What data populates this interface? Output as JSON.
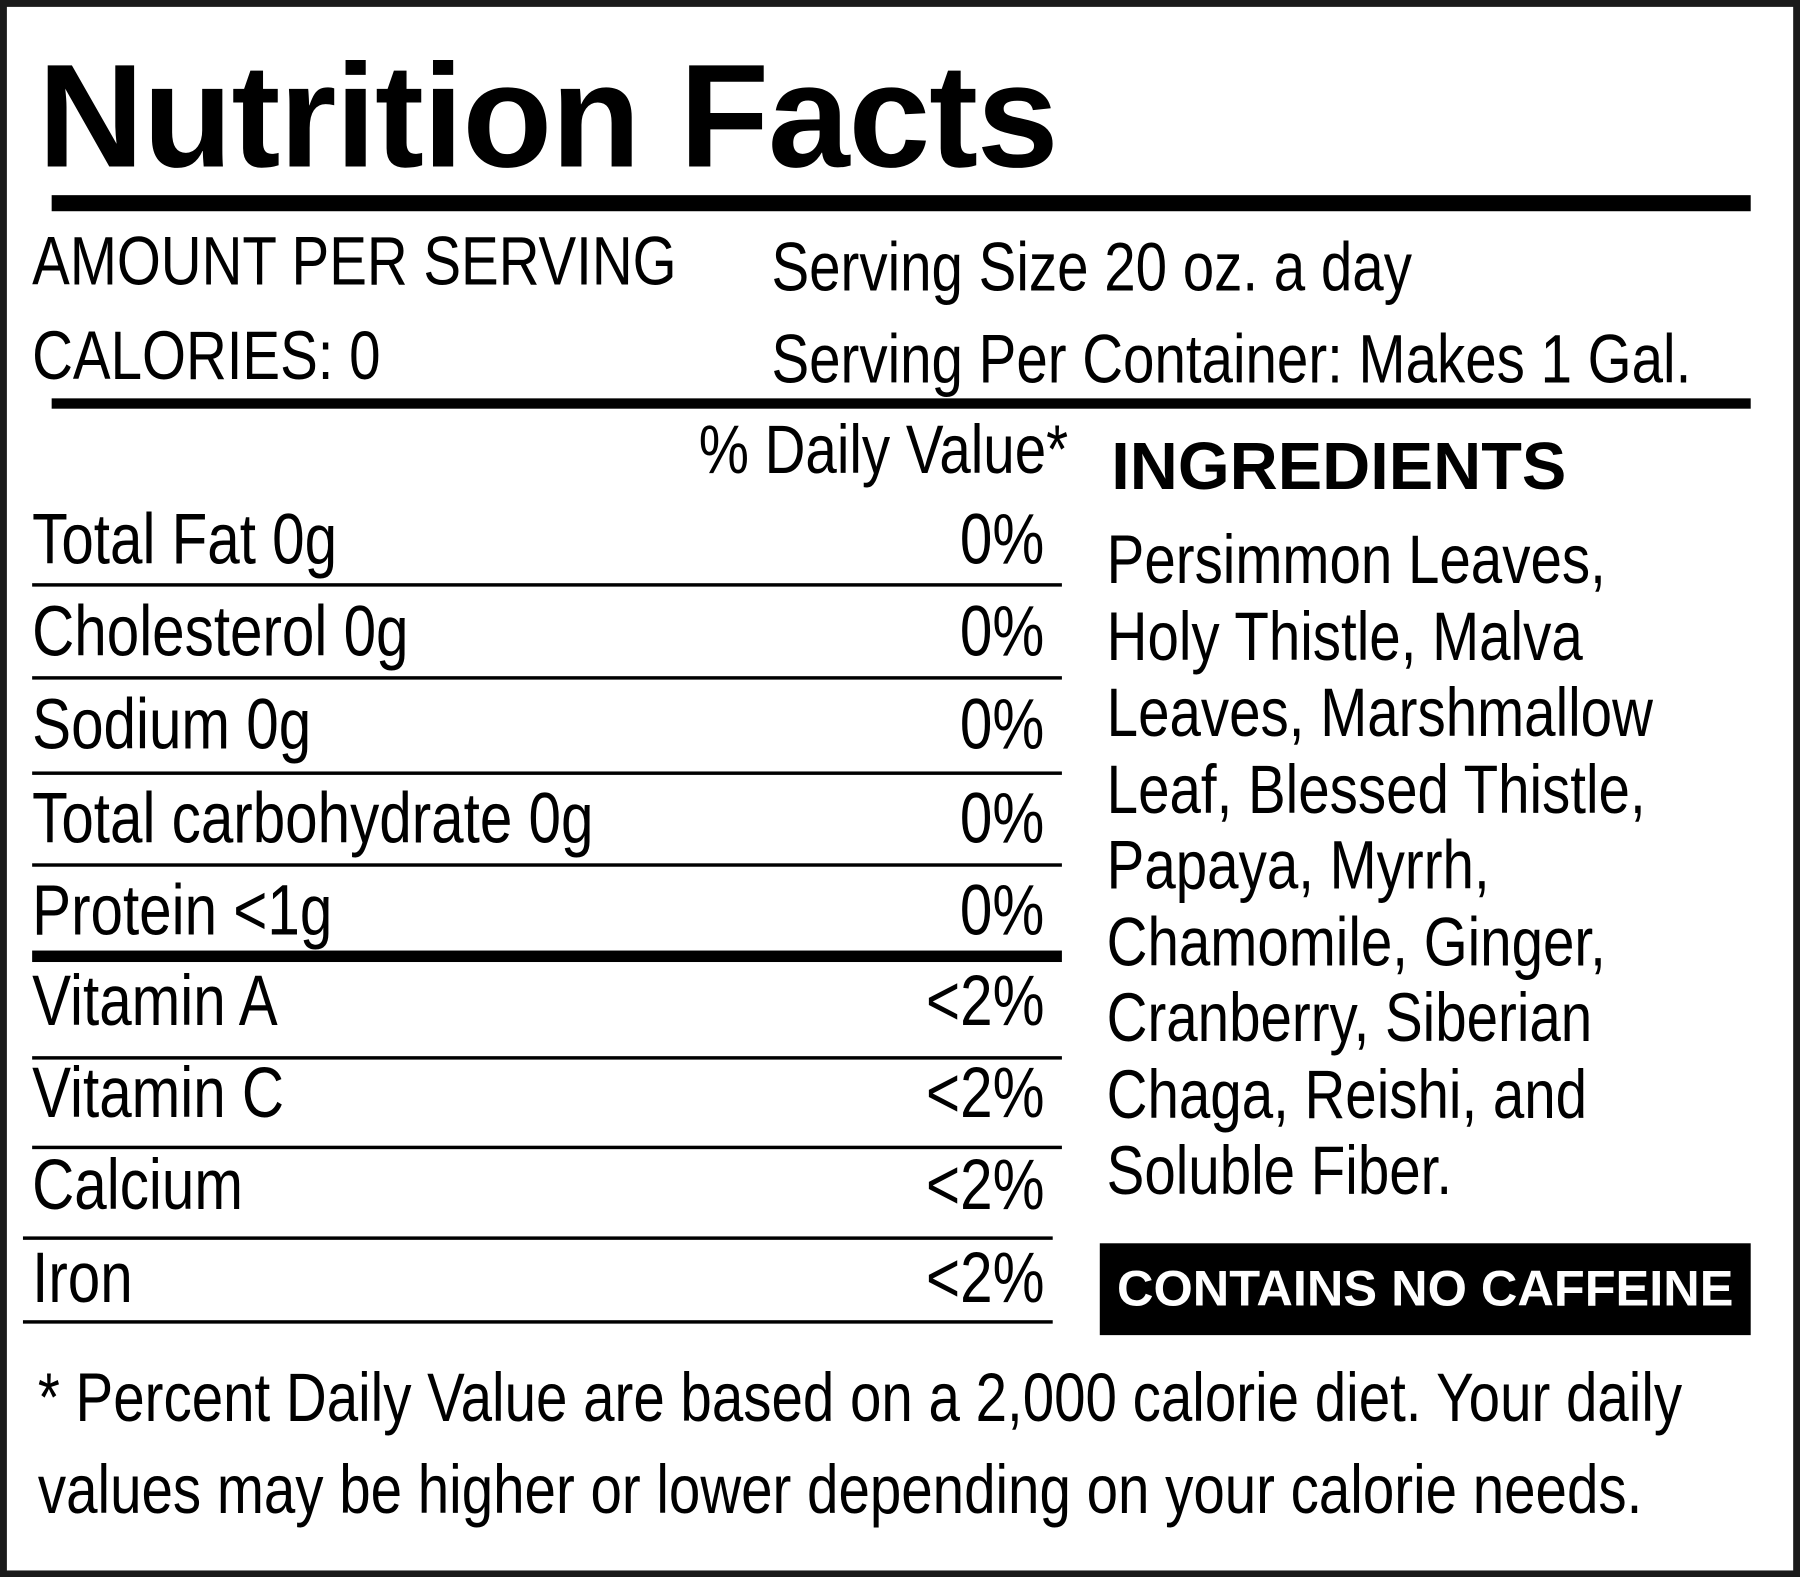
{
  "title": "Nutrition Facts",
  "header": {
    "amount_per_serving": "AMOUNT PER SERVING",
    "calories": "CALORIES: 0",
    "serving_size": "Serving Size 20 oz. a day",
    "servings_per_container": "Serving Per Container: Makes 1 Gal."
  },
  "daily_value_header": "% Daily Value*",
  "nutrients": [
    {
      "label": "Total Fat 0g",
      "value": "0%"
    },
    {
      "label": "Cholesterol 0g",
      "value": "0%"
    },
    {
      "label": "Sodium 0g",
      "value": "0%"
    },
    {
      "label": "Total carbohydrate 0g",
      "value": "0%"
    },
    {
      "label": "Protein <1g",
      "value": "0%"
    },
    {
      "label": "Vitamin A",
      "value": "<2%"
    },
    {
      "label": "Vitamin C",
      "value": "<2%"
    },
    {
      "label": "Calcium",
      "value": "<2%"
    },
    {
      "label": "Iron",
      "value": "<2%"
    }
  ],
  "ingredients": {
    "heading": "INGREDIENTS",
    "lines": [
      "Persimmon Leaves,",
      "Holy Thistle, Malva",
      "Leaves, Marshmallow",
      "Leaf, Blessed Thistle,",
      "Papaya, Myrrh,",
      "Chamomile, Ginger,",
      "Cranberry, Siberian",
      "Chaga, Reishi, and",
      "Soluble Fiber."
    ],
    "badge": "CONTAINS NO CAFFEINE"
  },
  "footnote": [
    "* Percent Daily Value are based on a 2,000 calorie diet. Your daily",
    "values may be higher or lower depending on your calorie needs."
  ]
}
